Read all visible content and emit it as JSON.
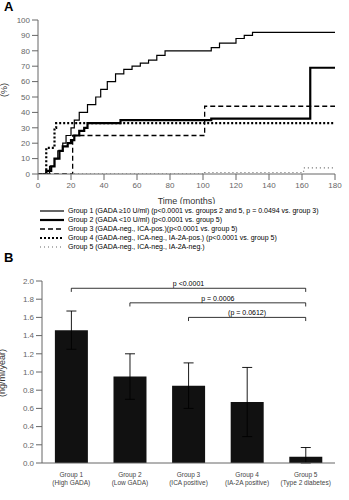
{
  "chart_data": [
    {
      "type": "step",
      "title": "A",
      "xlabel": "Time (months)",
      "ylabel": "(%)",
      "xlim": [
        0,
        180
      ],
      "ylim": [
        0,
        100
      ],
      "xticks": [
        0,
        20,
        40,
        60,
        80,
        100,
        120,
        140,
        160,
        180
      ],
      "yticks": [
        0,
        10,
        20,
        30,
        40,
        50,
        60,
        70,
        80,
        90,
        100
      ],
      "grid": false,
      "legend": "bottom",
      "series": [
        {
          "name": "Group 1 (GADA ≥10 U/ml) (p<0.0001 vs. groups 2 and 5, p = 0.0494 vs. group 3)",
          "color": "#000000",
          "line_style": "solid",
          "x": [
            0,
            5,
            7,
            10,
            12,
            15,
            17,
            20,
            22,
            25,
            30,
            35,
            38,
            42,
            47,
            52,
            57,
            62,
            67,
            72,
            77,
            100,
            105,
            110,
            120,
            125,
            130,
            140,
            160,
            165,
            180
          ],
          "values": [
            0,
            0,
            5,
            10,
            15,
            20,
            25,
            30,
            35,
            40,
            45,
            50,
            55,
            60,
            65,
            68,
            70,
            72,
            74,
            77,
            80,
            80,
            82,
            85,
            88,
            90,
            92,
            92,
            92,
            92,
            92
          ]
        },
        {
          "name": "Group 2 (GADA <10 U/ml) (p<0.0001 vs. group 5)",
          "color": "#000000",
          "line_style": "solid",
          "x": [
            0,
            5,
            8,
            10,
            13,
            15,
            18,
            20,
            22,
            25,
            28,
            30,
            35,
            50,
            100,
            105,
            160,
            165,
            180
          ],
          "values": [
            0,
            2,
            5,
            10,
            15,
            18,
            20,
            22,
            25,
            28,
            30,
            33,
            33,
            35,
            35,
            36,
            36,
            69,
            69
          ]
        },
        {
          "name": "Group 3 (GADA-neg., ICA-pos.)(p<0.0001 vs. group 5)",
          "color": "#000000",
          "line_style": "dashed",
          "x": [
            0,
            20,
            21,
            25,
            100,
            101,
            180
          ],
          "values": [
            0,
            0,
            25,
            25,
            25,
            44,
            44
          ]
        },
        {
          "name": "Group 4 (GADA-neg., ICA-neg., IA-2A-pos.) (p<0.0001 vs. group 5)",
          "color": "#000000",
          "line_style": "dotted",
          "x": [
            0,
            5,
            6,
            10,
            11,
            15,
            16,
            100,
            101,
            180
          ],
          "values": [
            0,
            17,
            17,
            30,
            33,
            33,
            33,
            33,
            33,
            33
          ]
        },
        {
          "name": "Group 5 (GADA-neg., ICA-neg., IA-2A-neg.)",
          "color": "#666666",
          "line_style": "loosely_dotted",
          "x": [
            0,
            100,
            101,
            160,
            161,
            180
          ],
          "values": [
            0,
            0,
            1,
            1,
            4,
            4
          ]
        }
      ]
    },
    {
      "type": "bar",
      "title": "B",
      "ylabel": "(ng/ml/year)",
      "ylim": [
        0,
        2.0
      ],
      "yticks": [
        {
          "value": 0,
          "label": "0.0"
        },
        0.2,
        0.4,
        0.6,
        0.8,
        {
          "value": 1,
          "label": "1.0"
        },
        1.2,
        1.4,
        1.6,
        1.8,
        {
          "value": 2,
          "label": "2.0"
        }
      ],
      "grid": false,
      "color": "#111111",
      "categories": [
        "Group 1\n(High GADA)",
        "Group 2\n(Low GADA)",
        "Group 3\n(ICA positive)",
        "Group 4\n(IA-2A positive)",
        "Group 5\n(Type 2 diabetes)"
      ],
      "values": [
        1.46,
        0.95,
        0.85,
        0.67,
        0.07
      ],
      "error_upper": [
        0.21,
        0.25,
        0.25,
        0.38,
        0.1
      ],
      "error_lower": [
        0.21,
        0.25,
        0.25,
        0.38,
        0.07
      ],
      "annotations": [
        {
          "from": "Group 1\n(High GADA)",
          "to": "Group 5\n(Type 2 diabetes)",
          "y": 1.92,
          "text": "p <0.0001"
        },
        {
          "from": "Group 2\n(Low GADA)",
          "to": "Group 5\n(Type 2 diabetes)",
          "y": 1.76,
          "text": "p = 0.0006"
        },
        {
          "from": "Group 3\n(ICA positive)",
          "to": "Group 5\n(Type 2 diabetes)",
          "y": 1.6,
          "text": "(p = 0.0612)"
        }
      ]
    }
  ]
}
